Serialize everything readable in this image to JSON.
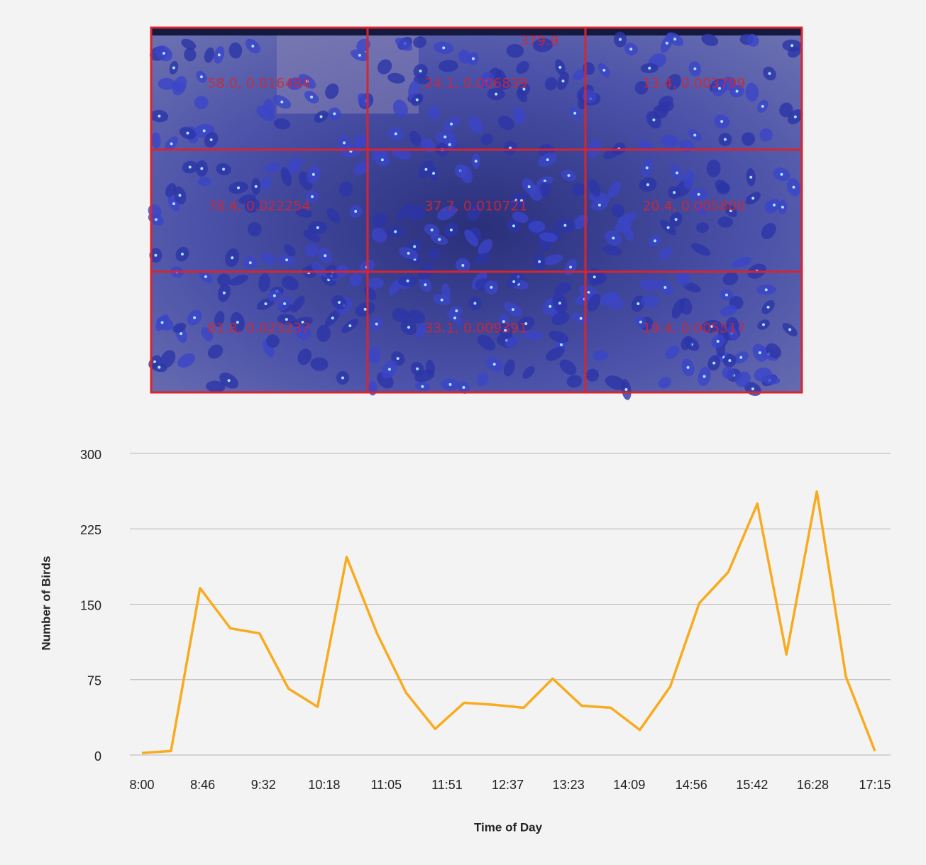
{
  "image_overlay": {
    "total": "379.9",
    "cells": [
      "58.0, 0.016484",
      "24.1, 0.006839",
      "13.4, 0.003799",
      "78.4, 0.022254",
      "37.7, 0.010721",
      "20.4, 0.005800",
      "81.8, 0.023237",
      "33.1, 0.009391",
      "19.4, 0.005517"
    ]
  },
  "chart_data": {
    "type": "line",
    "xlabel": "Time of Day",
    "ylabel": "Number of Birds",
    "x": [
      480,
      502,
      524,
      547,
      569,
      591,
      613,
      635,
      658,
      680,
      702,
      724,
      746,
      769,
      791,
      813,
      835,
      857,
      880,
      902,
      924,
      946,
      968,
      991,
      1013,
      1035
    ],
    "series": [
      {
        "name": "Number of Birds",
        "color": "#f8ab1e",
        "values": [
          2,
          4,
          166,
          126,
          121,
          66,
          48,
          197,
          121,
          62,
          26,
          52,
          50,
          47,
          76,
          49,
          47,
          25,
          68,
          151,
          182,
          250,
          100,
          262,
          78,
          4
        ]
      }
    ],
    "xlim": [
      480,
      1035
    ],
    "xticks": [
      {
        "value": 480,
        "label": "8:00"
      },
      {
        "value": 526,
        "label": "8:46"
      },
      {
        "value": 572,
        "label": "9:32"
      },
      {
        "value": 618,
        "label": "10:18"
      },
      {
        "value": 665,
        "label": "11:05"
      },
      {
        "value": 711,
        "label": "11:51"
      },
      {
        "value": 757,
        "label": "12:37"
      },
      {
        "value": 803,
        "label": "13:23"
      },
      {
        "value": 849,
        "label": "14:09"
      },
      {
        "value": 896,
        "label": "14:56"
      },
      {
        "value": 942,
        "label": "15:42"
      },
      {
        "value": 988,
        "label": "16:28"
      },
      {
        "value": 1035,
        "label": "17:15"
      }
    ],
    "ylim": [
      0,
      300
    ],
    "yticks": [
      0,
      75,
      150,
      225,
      300
    ],
    "grid": true
  }
}
